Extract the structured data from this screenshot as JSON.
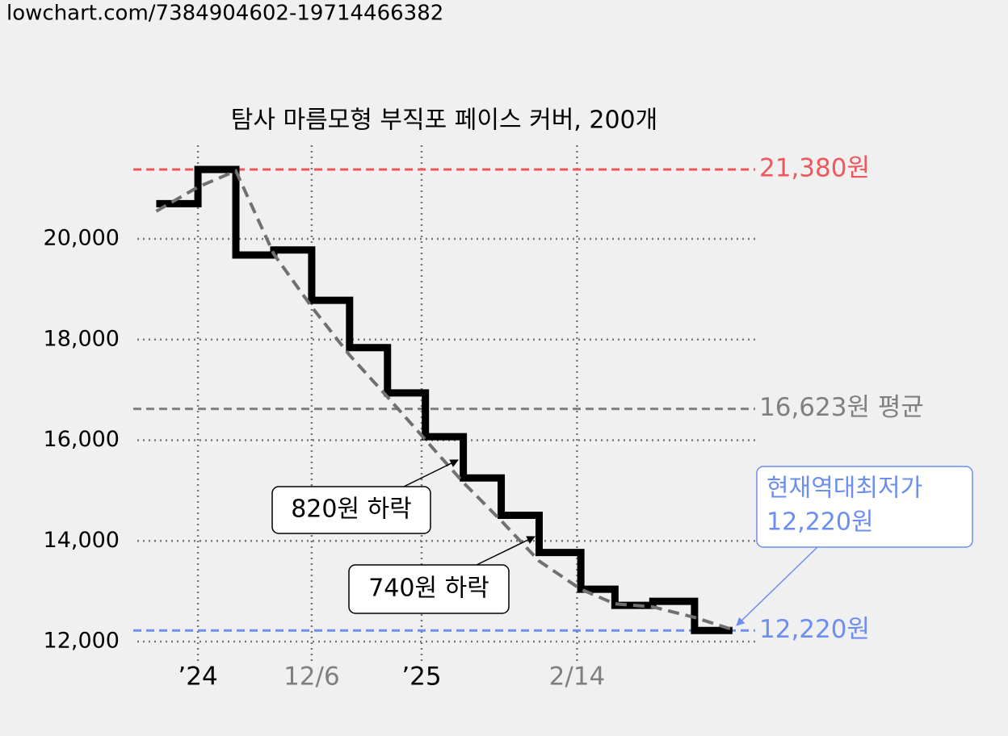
{
  "url": "lowchart.com/7384904602-19714466382",
  "chart_data": {
    "type": "step-line",
    "title": "탐사 마름모형 부직포 페이스 커버, 200개",
    "x": [
      0,
      11,
      21,
      31,
      41,
      51,
      61,
      71,
      81,
      91,
      101,
      112,
      121,
      131,
      142,
      152
    ],
    "series": [
      {
        "color": "#000000",
        "values": [
          20700,
          21380,
          19680,
          19780,
          18780,
          17840,
          16940,
          16070,
          15250,
          14510,
          13770,
          13040,
          12720,
          12800,
          12220,
          12220
        ]
      },
      {
        "color": "#707070",
        "dashed": true,
        "values": [
          20550,
          21030,
          21350,
          19700,
          18650,
          17690,
          16860,
          16010,
          15160,
          14400,
          13600,
          13040,
          12750,
          12690,
          12480,
          12240
        ]
      }
    ],
    "xlim": [
      -5,
      158
    ],
    "ylim": [
      11920,
      21860
    ],
    "xticks": [
      {
        "value": 11,
        "label": "’24",
        "color": "#000000"
      },
      {
        "value": 41,
        "label": "12/6",
        "color": "#808080"
      },
      {
        "value": 70,
        "label": "’25",
        "color": "#000000"
      },
      {
        "value": 111,
        "label": "2/14",
        "color": "#808080"
      }
    ],
    "yticks": [
      {
        "value": 12000,
        "label": "12,000"
      },
      {
        "value": 14000,
        "label": "14,000"
      },
      {
        "value": 16000,
        "label": "16,000"
      },
      {
        "value": 18000,
        "label": "18,000"
      },
      {
        "value": 20000,
        "label": "20,000"
      }
    ],
    "grid": true,
    "reference_lines": [
      {
        "value": 21380,
        "label": "21,380원",
        "color": "#f0575c"
      },
      {
        "value": 16623,
        "label": "16,623원 평균",
        "color": "#808080"
      },
      {
        "value": 12220,
        "label": "12,220원",
        "color": "#6b8ef0"
      }
    ],
    "annotations": [
      {
        "lines": [
          "820원 하락"
        ]
      },
      {
        "lines": [
          "740원 하락"
        ]
      },
      {
        "lines": [
          "현재역대최저가",
          "12,220원"
        ],
        "color": "#6b8ef0"
      }
    ]
  }
}
